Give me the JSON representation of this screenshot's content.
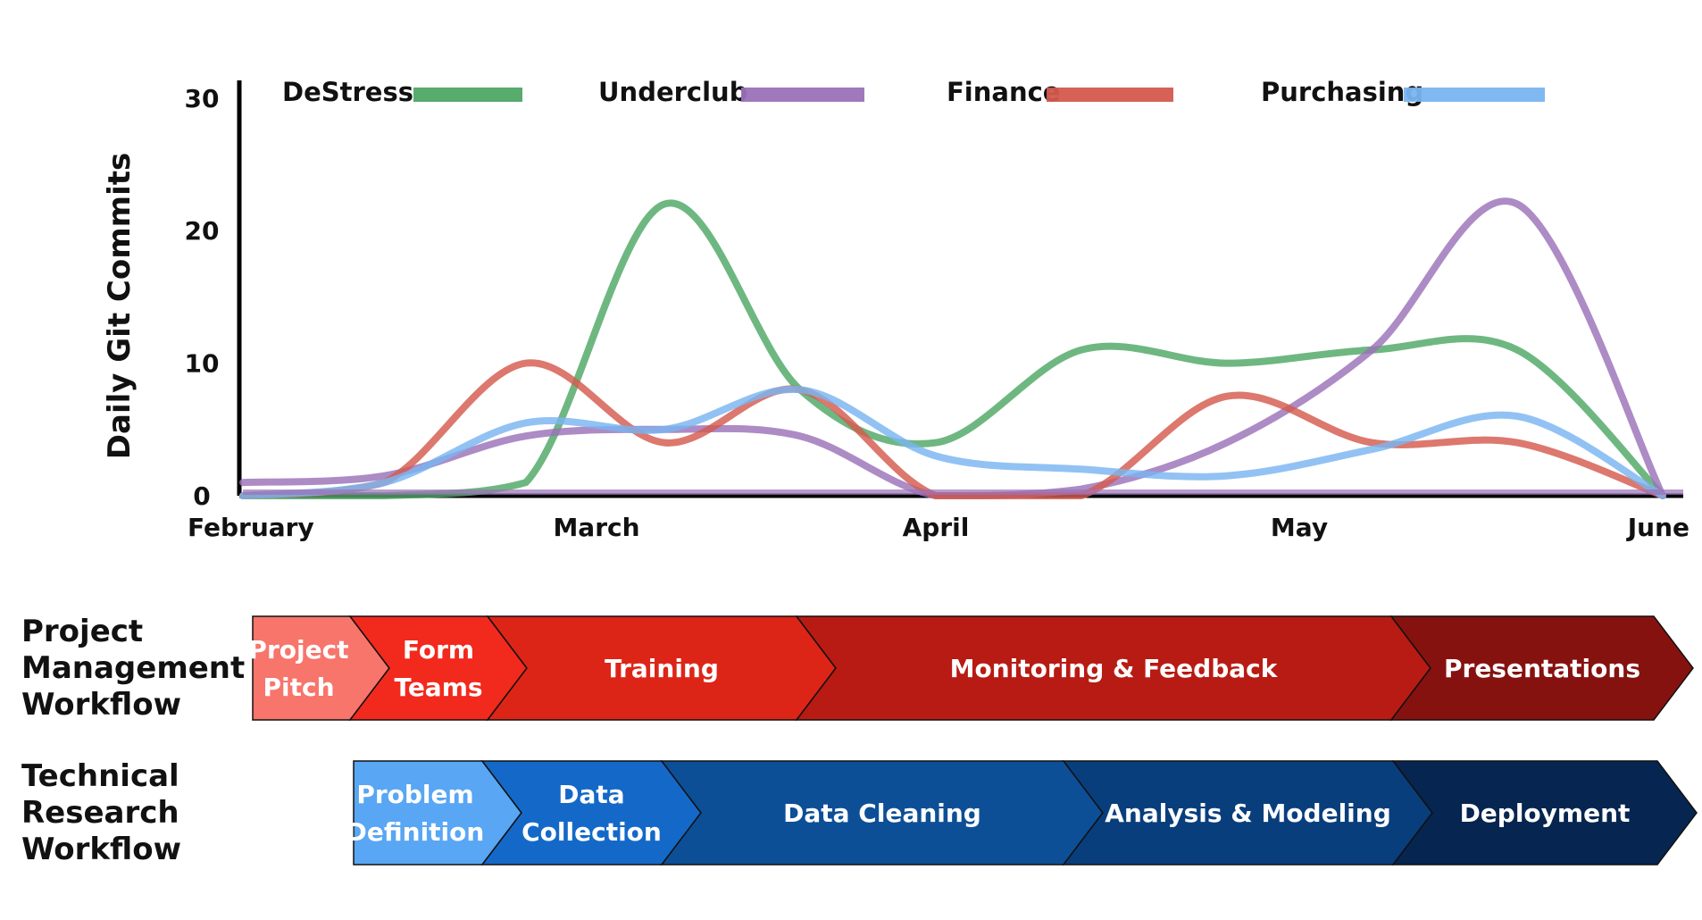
{
  "chart_data": {
    "type": "line",
    "ylabel": "Daily Git Commits",
    "xlabel": "",
    "ylim": [
      0,
      31
    ],
    "x_ticks": [
      "February",
      "March",
      "April",
      "May",
      "June"
    ],
    "y_ticks": [
      0,
      10,
      20,
      30
    ],
    "legend_position": "top",
    "x": [
      0,
      0.4,
      0.8,
      1.2,
      1.6,
      2.0,
      2.4,
      2.8,
      3.2,
      3.6,
      4.0
    ],
    "series": [
      {
        "name": "DeStress",
        "color": "#4ea765",
        "values": [
          0,
          0,
          1,
          22,
          8,
          4,
          11,
          10,
          11,
          11,
          0
        ]
      },
      {
        "name": "Underclub",
        "color": "#9b72b8",
        "values": [
          1,
          1.5,
          4.5,
          5,
          4.5,
          0,
          0.5,
          4,
          11,
          22,
          0
        ]
      },
      {
        "name": "Finance",
        "color": "#d45a4e",
        "values": [
          0,
          1,
          10,
          4,
          8,
          0,
          0,
          7.5,
          4,
          4,
          0
        ]
      },
      {
        "name": "Purchasing",
        "color": "#79b5f0",
        "values": [
          0,
          1,
          5.5,
          5,
          8,
          3,
          2,
          1.5,
          3.5,
          6,
          0
        ]
      }
    ]
  },
  "workflows": [
    {
      "label_lines": [
        "Project",
        "Management",
        "Workflow"
      ],
      "stages": [
        {
          "label_lines": [
            "Project",
            "Pitch"
          ],
          "color": "#f7756b"
        },
        {
          "label_lines": [
            "Form",
            "Teams"
          ],
          "color": "#f2291d"
        },
        {
          "label_lines": [
            "Training"
          ],
          "color": "#dd2517"
        },
        {
          "label_lines": [
            "Monitoring & Feedback"
          ],
          "color": "#b81b13"
        },
        {
          "label_lines": [
            "Presentations"
          ],
          "color": "#861210"
        }
      ]
    },
    {
      "label_lines": [
        "Technical",
        "Research",
        "Workflow"
      ],
      "stages": [
        {
          "label_lines": [
            "Problem",
            "Definition"
          ],
          "color": "#58a6f4"
        },
        {
          "label_lines": [
            "Data",
            "Collection"
          ],
          "color": "#1469c8"
        },
        {
          "label_lines": [
            "Data Cleaning"
          ],
          "color": "#0d4f97"
        },
        {
          "label_lines": [
            "Analysis & Modeling"
          ],
          "color": "#093e7d"
        },
        {
          "label_lines": [
            "Deployment"
          ],
          "color": "#062550"
        }
      ]
    }
  ]
}
